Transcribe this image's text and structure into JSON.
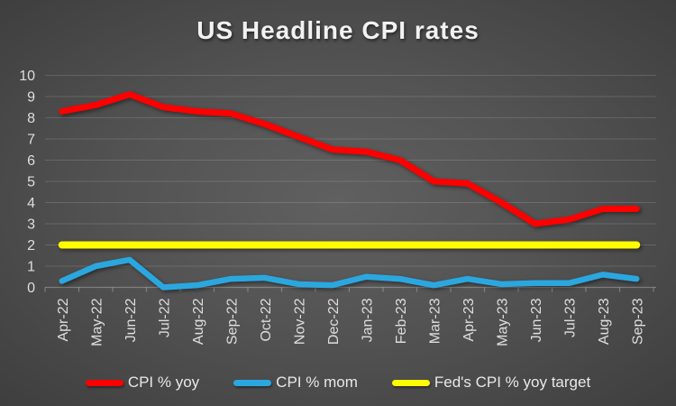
{
  "title": "US Headline CPI rates",
  "legend": {
    "position": "bottom",
    "items": [
      "CPI % yoy",
      "CPI % mom",
      "Fed's CPI % yoy target"
    ]
  },
  "colors": {
    "cpi_yoy": "#fe0000",
    "cpi_mom": "#2BA7E0",
    "fed_target": "#FDFD00",
    "text": "#e8e8e8",
    "title_text": "#f2f2f2"
  },
  "chart_data": {
    "type": "line",
    "title": "US Headline CPI rates",
    "xlabel": "",
    "ylabel": "",
    "ylim": [
      0,
      10
    ],
    "yticks": [
      0,
      1,
      2,
      3,
      4,
      5,
      6,
      7,
      8,
      9,
      10
    ],
    "grid": true,
    "legend_position": "bottom",
    "categories": [
      "Apr-22",
      "May-22",
      "Jun-22",
      "Jul-22",
      "Aug-22",
      "Sep-22",
      "Oct-22",
      "Nov-22",
      "Dec-22",
      "Jan-23",
      "Feb-23",
      "Mar-23",
      "Apr-23",
      "May-23",
      "Jun-23",
      "Jul-23",
      "Aug-23",
      "Sep-23"
    ],
    "series": [
      {
        "name": "CPI % yoy",
        "color": "#fe0000",
        "stroke_width": 7,
        "values": [
          8.3,
          8.6,
          9.1,
          8.5,
          8.3,
          8.2,
          7.7,
          7.1,
          6.5,
          6.4,
          6.0,
          5.0,
          4.9,
          4.0,
          3.0,
          3.2,
          3.7,
          3.7
        ]
      },
      {
        "name": "CPI % mom",
        "color": "#2BA7E0",
        "stroke_width": 6.5,
        "values": [
          0.3,
          1.0,
          1.3,
          0.0,
          0.1,
          0.4,
          0.45,
          0.15,
          0.1,
          0.5,
          0.4,
          0.1,
          0.4,
          0.15,
          0.2,
          0.2,
          0.6,
          0.4
        ]
      },
      {
        "name": "Fed's CPI % yoy target",
        "color": "#FDFD00",
        "stroke_width": 8,
        "values": [
          2,
          2,
          2,
          2,
          2,
          2,
          2,
          2,
          2,
          2,
          2,
          2,
          2,
          2,
          2,
          2,
          2,
          2
        ]
      }
    ]
  }
}
